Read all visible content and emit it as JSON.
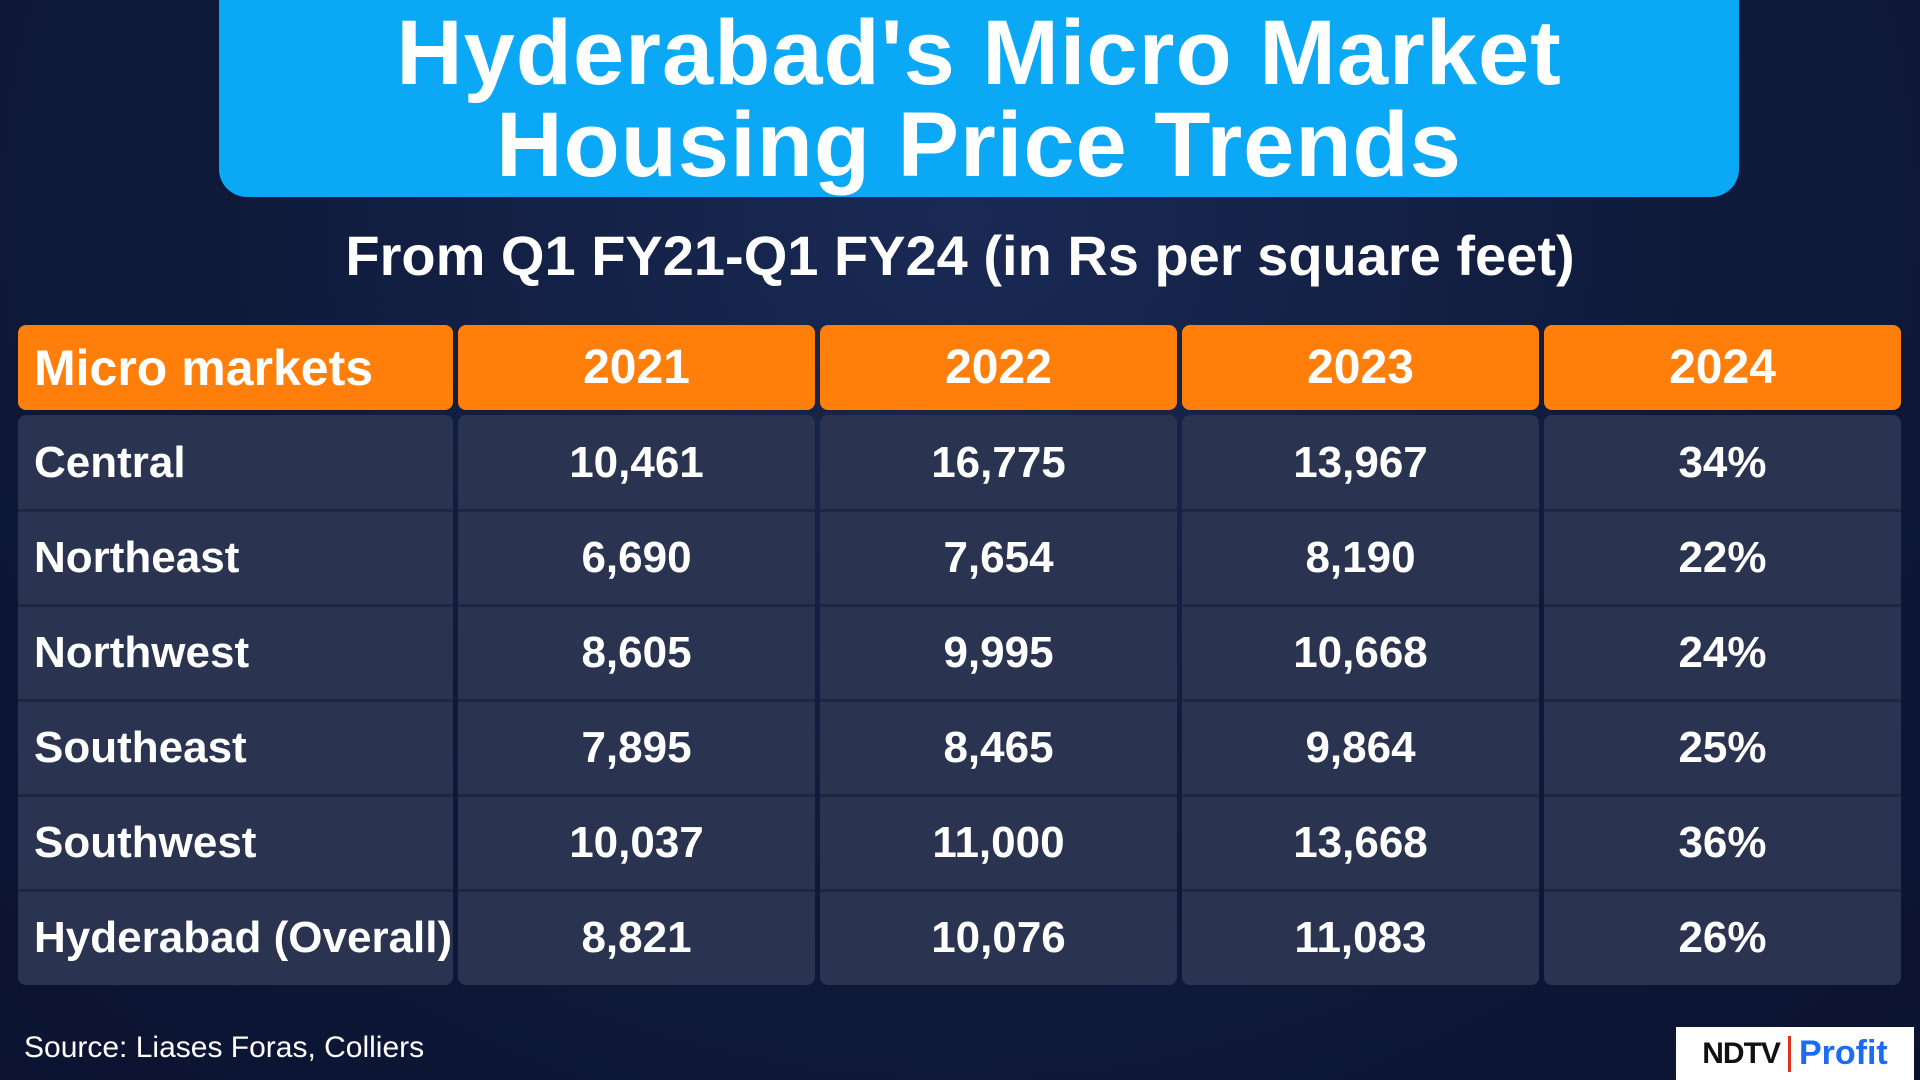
{
  "title": {
    "line1": "Hyderabad's Micro Market",
    "line2": "Housing Price Trends"
  },
  "subtitle": "From Q1 FY21-Q1 FY24 (in Rs per square feet)",
  "chart_data": {
    "type": "table",
    "title": "Hyderabad's Micro Market Housing Price Trends",
    "subtitle": "From Q1 FY21-Q1 FY24 (in Rs per square feet)",
    "columns": [
      "Micro markets",
      "2021",
      "2022",
      "2023",
      "2024"
    ],
    "rows": [
      [
        "Central",
        "10,461",
        "16,775",
        "13,967",
        "34%"
      ],
      [
        "Northeast",
        "6,690",
        "7,654",
        "8,190",
        "22%"
      ],
      [
        "Northwest",
        "8,605",
        "9,995",
        "10,668",
        "24%"
      ],
      [
        "Southeast",
        "7,895",
        "8,465",
        "9,864",
        "25%"
      ],
      [
        "Southwest",
        "10,037",
        "11,000",
        "13,668",
        "36%"
      ],
      [
        "Hyderabad (Overall)",
        "8,821",
        "10,076",
        "11,083",
        "26%"
      ]
    ]
  },
  "source": "Source: Liases Foras, Colliers",
  "logo": {
    "brand": "NDTV",
    "product": "Profit"
  },
  "colors": {
    "title_bg": "#0aa8f5",
    "header_bg": "#ff7f0a",
    "cell_bg": "#2a3450",
    "page_bg": "#0f1a3a"
  }
}
